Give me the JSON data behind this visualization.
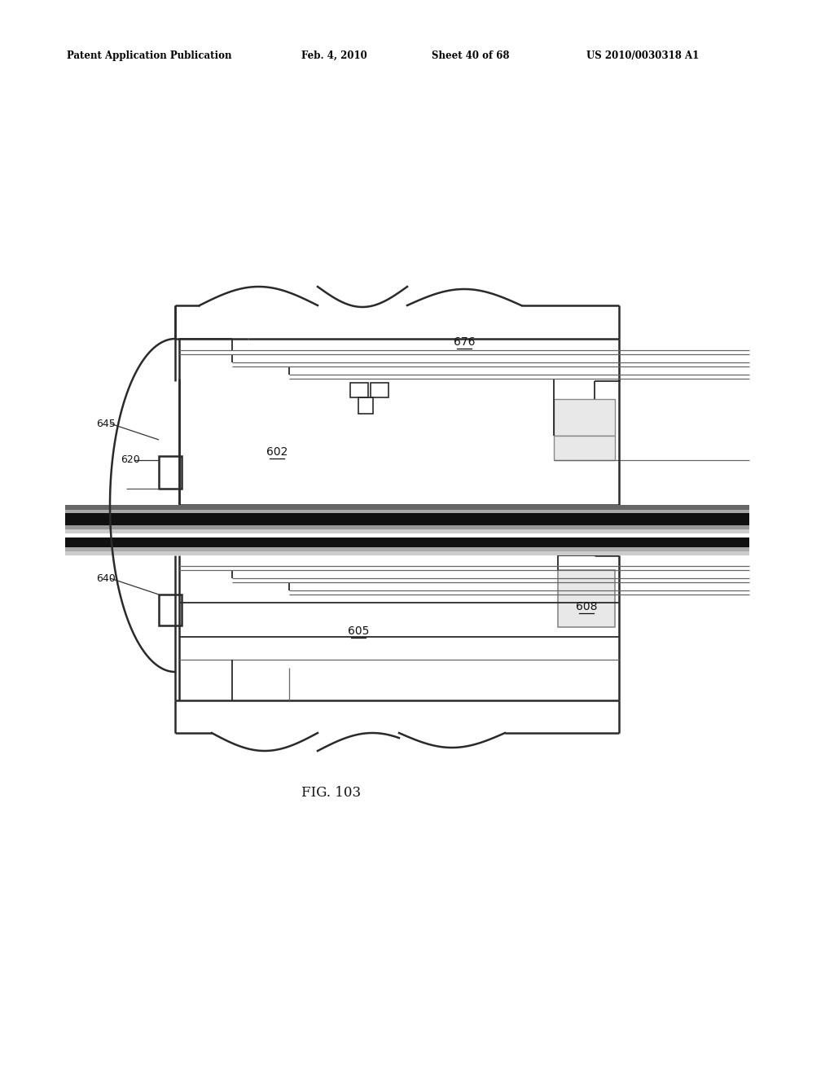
{
  "bg_color": "#ffffff",
  "header_text": "Patent Application Publication",
  "header_date": "Feb. 4, 2010",
  "header_sheet": "Sheet 40 of 68",
  "header_patent": "US 2010/0030318 A1",
  "fig_label": "FIG. 103",
  "line_color": "#2a2a2a",
  "thin_line_color": "#666666",
  "thick_band_color": "#111111",
  "mid_gray": "#888888",
  "light_gray": "#cccccc",
  "fill_gray": "#e8e8e8"
}
